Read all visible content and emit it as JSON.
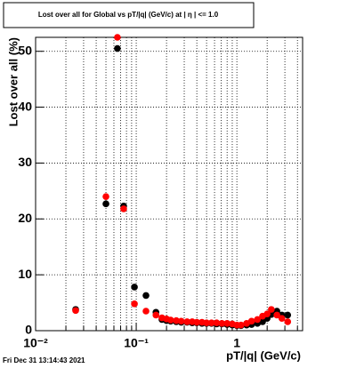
{
  "chart_data": {
    "type": "scatter",
    "title": "Lost over all for Global vs pT/|q| (GeV/c) at |  η  | <= 1.0",
    "x_label": "pT/|q| (GeV/c)",
    "y_label": "Lost over all (%)",
    "footer": "Fri Dec 31 13:14:43 2021",
    "x_log": true,
    "grid": true,
    "xlim": [
      0.01,
      4.5
    ],
    "ylim": [
      0,
      52.5
    ],
    "xticks": [
      {
        "value": 0.01,
        "label": "10⁻²"
      },
      {
        "value": 0.1,
        "label": "10⁻¹"
      },
      1
    ],
    "xminorticks": [
      0.02,
      0.03,
      0.04,
      0.05,
      0.06,
      0.07,
      0.08,
      0.09,
      0.2,
      0.3,
      0.4,
      0.5,
      0.6,
      0.7,
      0.8,
      0.9,
      2,
      3,
      4
    ],
    "yticks": [
      0,
      10,
      20,
      30,
      40,
      50
    ],
    "x": [
      0.025,
      0.05,
      0.065,
      0.075,
      0.096,
      0.125,
      0.157,
      0.18,
      0.2,
      0.22,
      0.25,
      0.28,
      0.32,
      0.36,
      0.4,
      0.45,
      0.5,
      0.56,
      0.63,
      0.71,
      0.8,
      0.9,
      1.0,
      1.1,
      1.25,
      1.4,
      1.6,
      1.8,
      2.0,
      2.2,
      2.5,
      2.8,
      3.2
    ],
    "series": [
      {
        "color": "#000000",
        "values": [
          3.8,
          22.7,
          50.5,
          22.3,
          7.8,
          6.3,
          3.3,
          2.0,
          1.8,
          1.7,
          1.6,
          1.5,
          1.5,
          1.4,
          1.4,
          1.3,
          1.3,
          1.3,
          1.2,
          1.2,
          1.1,
          1.0,
          0.9,
          0.9,
          1.0,
          1.1,
          1.3,
          1.6,
          2.2,
          2.9,
          3.5,
          2.8,
          2.8
        ]
      },
      {
        "color": "#ff0000",
        "values": [
          3.6,
          24.0,
          52.5,
          21.8,
          4.8,
          3.5,
          2.8,
          2.3,
          2.1,
          1.9,
          1.8,
          1.7,
          1.6,
          1.6,
          1.5,
          1.5,
          1.4,
          1.4,
          1.4,
          1.3,
          1.3,
          1.2,
          1.0,
          1.0,
          1.3,
          1.7,
          2.0,
          2.6,
          3.0,
          3.8,
          2.8,
          2.2,
          1.6
        ]
      }
    ]
  }
}
